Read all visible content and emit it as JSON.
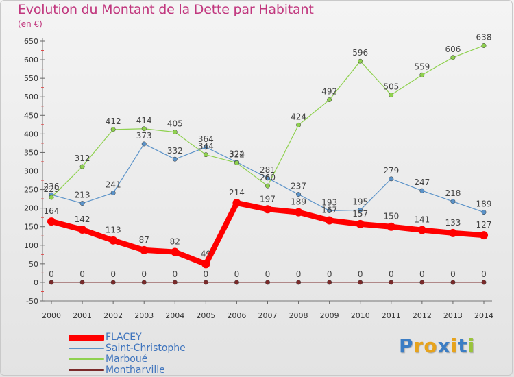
{
  "title": "Evolution du Montant de la Dette par Habitant",
  "subtitle": "(en €)",
  "logo": {
    "text": "Proxiti",
    "colors": [
      "#3b7dc4",
      "#e7a31c",
      "#e7a31c",
      "#3b7dc4",
      "#e7a31c",
      "#3b7dc4",
      "#9ac43b"
    ]
  },
  "chart_data": {
    "type": "line",
    "title": "Evolution du Montant de la Dette par Habitant",
    "subtitle": "(en €)",
    "x": [
      2000,
      2001,
      2002,
      2003,
      2004,
      2005,
      2006,
      2007,
      2008,
      2009,
      2010,
      2011,
      2012,
      2013,
      2014
    ],
    "ylim": [
      -50,
      650
    ],
    "yticks": [
      -50,
      0,
      50,
      100,
      150,
      200,
      250,
      300,
      350,
      400,
      450,
      500,
      550,
      600,
      650
    ],
    "grid": false,
    "legend_position": "bottom-left",
    "series": [
      {
        "name": "Montharville",
        "color": "#7a2a2a",
        "values": [
          0,
          0,
          0,
          0,
          0,
          0,
          0,
          0,
          0,
          0,
          0,
          0,
          0,
          0,
          0
        ]
      },
      {
        "name": "Saint-Christophe",
        "color": "#5b93c9",
        "values": [
          236,
          213,
          241,
          373,
          332,
          364,
          324,
          281,
          237,
          193,
          195,
          279,
          247,
          218,
          189
        ]
      },
      {
        "name": "Marboué",
        "color": "#8fd14f",
        "values": [
          229,
          312,
          412,
          414,
          405,
          344,
          322,
          260,
          424,
          492,
          596,
          505,
          559,
          606,
          638
        ]
      },
      {
        "name": "FLACEY",
        "color": "#ff0000",
        "values": [
          164,
          142,
          113,
          87,
          82,
          49,
          214,
          197,
          189,
          167,
          157,
          150,
          141,
          133,
          127
        ]
      }
    ],
    "legend": [
      "FLACEY",
      "Saint-Christophe",
      "Marboué",
      "Montharville"
    ]
  }
}
